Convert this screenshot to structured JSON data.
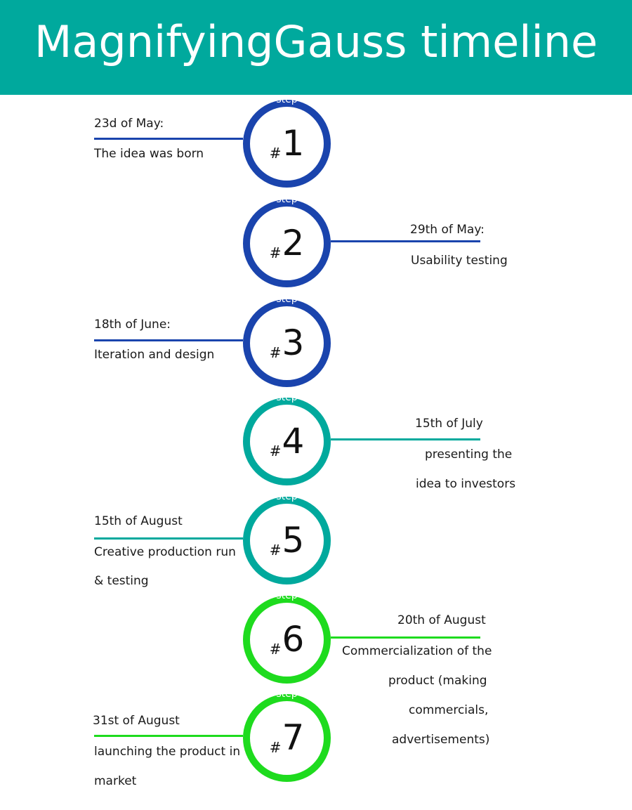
{
  "header": {
    "title": "MagnifyingGauss timeline",
    "bg_color": "#00a99d"
  },
  "colors": {
    "blue": "#1a44ad",
    "teal": "#00a99d",
    "green": "#1edb1e"
  },
  "steps": [
    {
      "label": "step",
      "hash": "#",
      "number": "1",
      "color": "blue",
      "side": "left",
      "date": "23d of  May:",
      "lines": [
        "The idea was born"
      ]
    },
    {
      "label": "step",
      "hash": "#",
      "number": "2",
      "color": "blue",
      "side": "right",
      "date": "29th of May:",
      "lines": [
        "Usability testing"
      ]
    },
    {
      "label": "step",
      "hash": "#",
      "number": "3",
      "color": "blue",
      "side": "left",
      "date": "18th of June:",
      "lines": [
        "Iteration and design"
      ]
    },
    {
      "label": "step",
      "hash": "#",
      "number": "4",
      "color": "teal",
      "side": "right",
      "date": "15th of July",
      "lines": [
        "presenting the",
        "idea to investors"
      ]
    },
    {
      "label": "step",
      "hash": "#",
      "number": "5",
      "color": "teal",
      "side": "left",
      "date": "15th of August",
      "lines": [
        "Creative production run",
        "& testing"
      ]
    },
    {
      "label": "step",
      "hash": "#",
      "number": "6",
      "color": "green",
      "side": "right",
      "date": "20th of August",
      "lines": [
        "Commercialization of the",
        "product (making",
        "commercials,",
        "advertisements)"
      ]
    },
    {
      "label": "step",
      "hash": "#",
      "number": "7",
      "color": "green",
      "side": "left",
      "date": "31st of August",
      "lines": [
        "launching the product in",
        "market"
      ]
    }
  ]
}
